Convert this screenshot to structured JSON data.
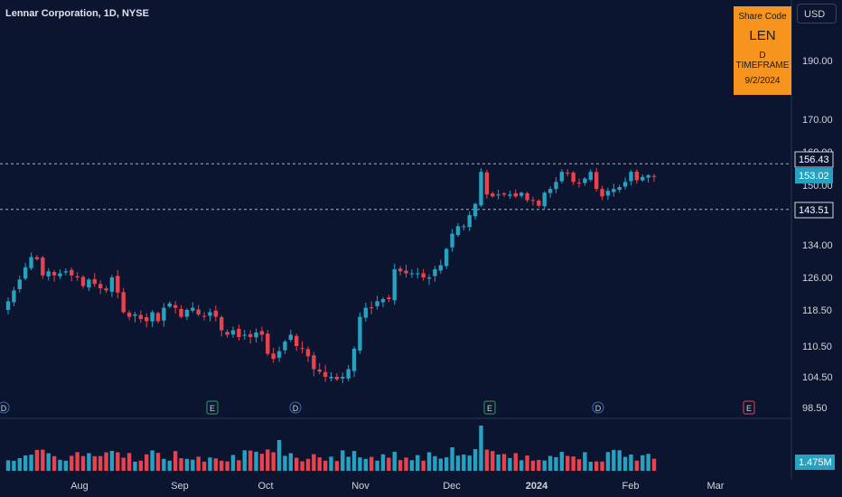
{
  "title": "Lennar Corporation, 1D, NYSE",
  "currency_button": "USD",
  "share_box": {
    "line1": "Share Code",
    "line2": "LEN",
    "line3": "D TIMEFRAME",
    "line4": "9/2/2024",
    "color": "#f7941d"
  },
  "colors": {
    "up": "#26a2c0",
    "down": "#e8424f",
    "background": "#0c1530",
    "grid": "#1a2340"
  },
  "chart_data": {
    "type": "candlestick",
    "y_ticks": [
      "190.00",
      "170.00",
      "160.00",
      "150.00",
      "134.00",
      "126.00",
      "118.50",
      "110.50",
      "104.50",
      "98.50"
    ],
    "x_ticks": [
      "Aug",
      "Sep",
      "Oct",
      "Nov",
      "Dec",
      "2024",
      "Feb",
      "Mar"
    ],
    "price_labels": [
      {
        "value": "156.43",
        "style": "outline"
      },
      {
        "value": "153.02",
        "style": "current"
      },
      {
        "value": "143.51",
        "style": "outline"
      }
    ],
    "horizontal_lines": [
      156.43,
      143.51
    ],
    "volume_label": "1.475M",
    "events": [
      {
        "label": "D",
        "kind": "dividend"
      },
      {
        "label": "E",
        "kind": "earnings"
      },
      {
        "label": "D",
        "kind": "dividend"
      },
      {
        "label": "E",
        "kind": "earnings"
      },
      {
        "label": "D",
        "kind": "dividend"
      },
      {
        "label": "E",
        "kind": "earnings-upcoming"
      }
    ],
    "closes": [
      120.5,
      123,
      125.5,
      128.5,
      131,
      130.5,
      126.5,
      127.5,
      126.5,
      127,
      127.5,
      126.5,
      126,
      124,
      125.5,
      124.5,
      123.5,
      123,
      126,
      122.5,
      118,
      117,
      117.5,
      116.5,
      116,
      118,
      116,
      119,
      120,
      119,
      117,
      118.5,
      119,
      117.5,
      117,
      118,
      117,
      114,
      113,
      114,
      112.5,
      113,
      112.5,
      113.5,
      113,
      109,
      108,
      109.5,
      111.5,
      113,
      110.5,
      110,
      108.5,
      106,
      105.5,
      104.5,
      104.5,
      104,
      104.5,
      106,
      110,
      117,
      119,
      119,
      120.5,
      121,
      121,
      128,
      127.5,
      127,
      127,
      127,
      126,
      126,
      128,
      129,
      133,
      137,
      139,
      139,
      142,
      145,
      154,
      147.5,
      147,
      147.5,
      147.5,
      147.5,
      147,
      148,
      146,
      146,
      144.5,
      148,
      149,
      151,
      154,
      153.5,
      151,
      150.5,
      152,
      154,
      149,
      147,
      148.5,
      149,
      149.5,
      151,
      154,
      151.5,
      152.5,
      153,
      152.5
    ],
    "volume": "relative bars per session, peak on earnings day in Dec"
  }
}
